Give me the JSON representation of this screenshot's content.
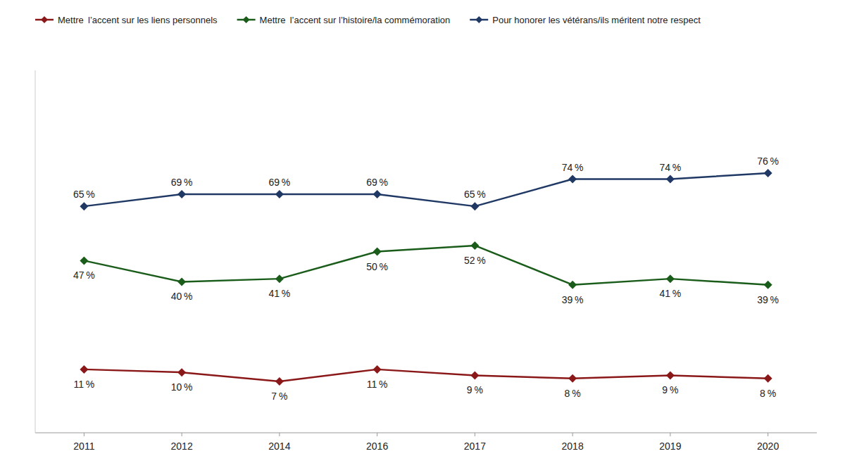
{
  "chart_data": {
    "type": "line",
    "categories": [
      "2011",
      "2012",
      "2014",
      "2016",
      "2017",
      "2018",
      "2019",
      "2020"
    ],
    "series": [
      {
        "name": "Mettre  l’accent sur les liens personnels",
        "color": "#8B1818",
        "marker": "diamond",
        "values": [
          11,
          10,
          7,
          11,
          9,
          8,
          9,
          8
        ],
        "value_labels": [
          "11 %",
          "10 %",
          "7 %",
          "11 %",
          "9 %",
          "8 %",
          "9 %",
          "8 %"
        ]
      },
      {
        "name": "Mettre  l’accent sur l’histoire/la commémoration",
        "color": "#1A5C1A",
        "marker": "diamond",
        "values": [
          47,
          40,
          41,
          50,
          52,
          39,
          41,
          39
        ],
        "value_labels": [
          "47 %",
          "40 %",
          "41 %",
          "50 %",
          "52 %",
          "39 %",
          "41 %",
          "39 %"
        ]
      },
      {
        "name": "Pour honorer les vétérans/ils méritent notre respect",
        "color": "#1F3864",
        "marker": "diamond",
        "values": [
          65,
          69,
          69,
          69,
          65,
          74,
          74,
          76
        ],
        "value_labels": [
          "65 %",
          "69 %",
          "69 %",
          "69 %",
          "65 %",
          "74 %",
          "74 %",
          "76 %"
        ]
      }
    ],
    "ylim": [
      -10,
      110
    ],
    "grid": false,
    "legend": "top",
    "data_labels": true,
    "tick_labels": "x"
  }
}
